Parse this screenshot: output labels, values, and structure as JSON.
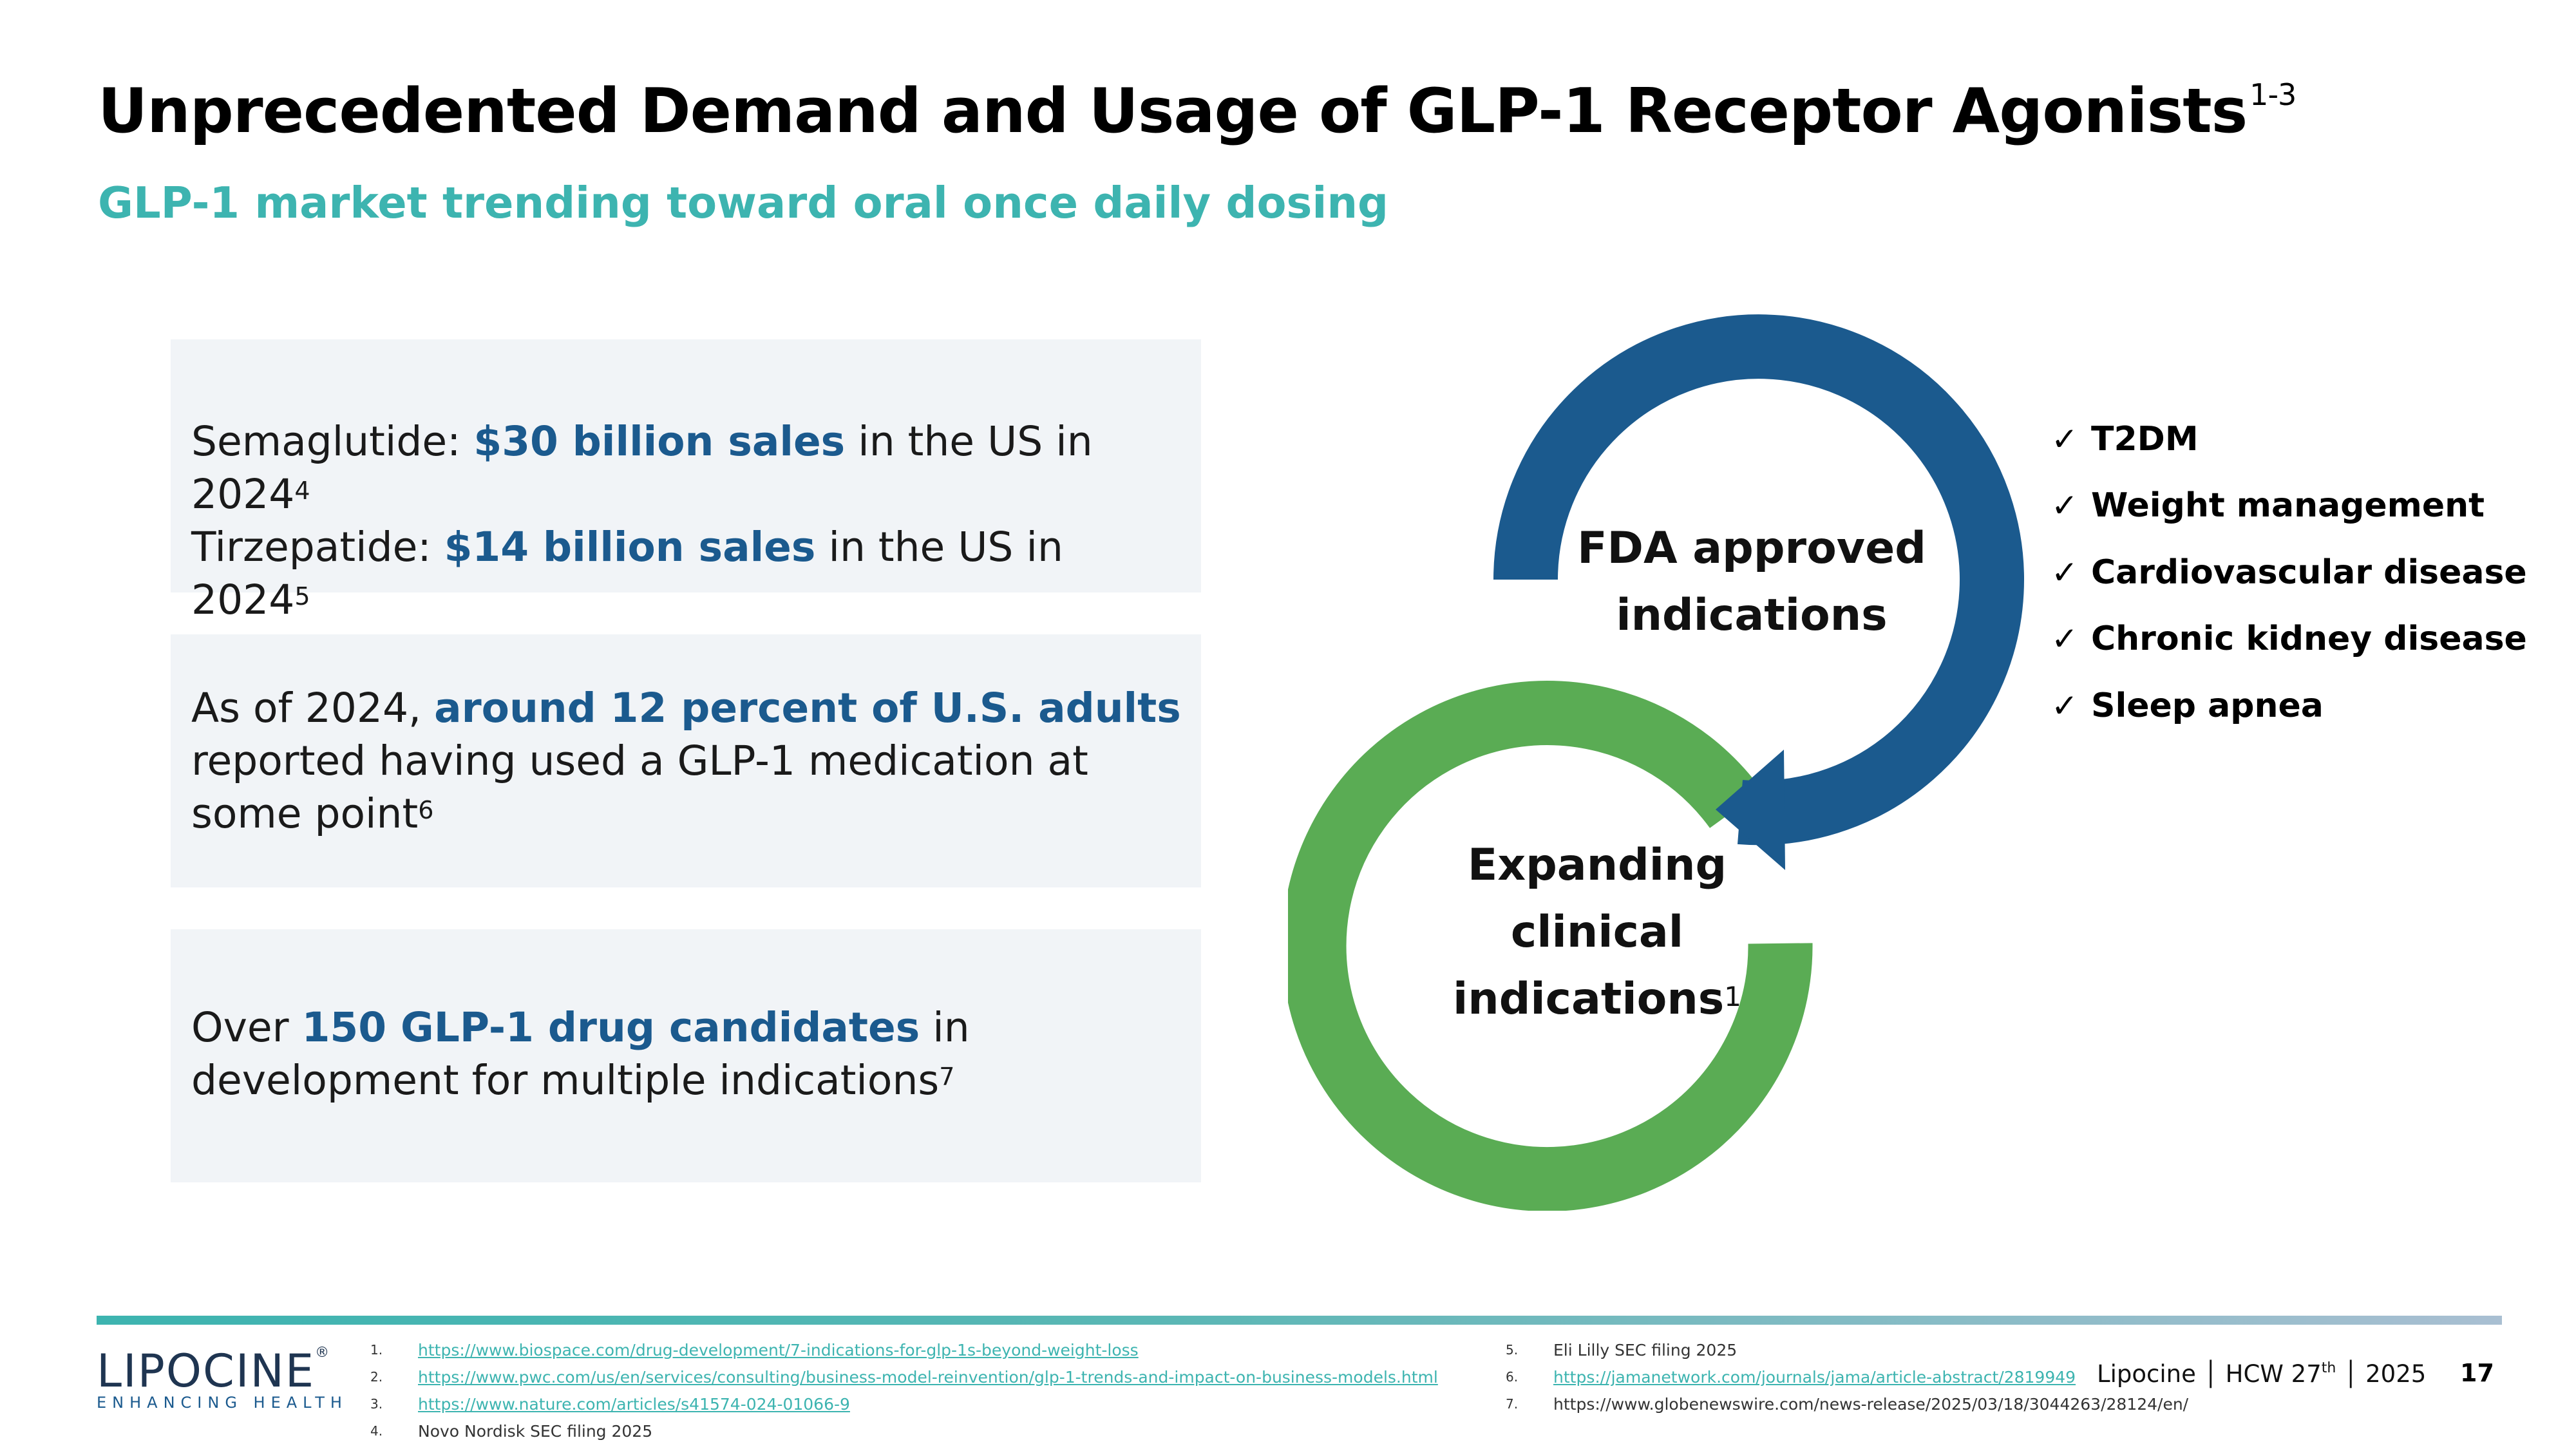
{
  "title": {
    "text": "Unprecedented Demand and Usage of GLP-1 Receptor Agonists",
    "sup": "1-3"
  },
  "subtitle": "GLP-1 market trending toward oral once daily dosing",
  "cards": [
    {
      "line1_a": "Semaglutide: ",
      "line1_b": "$30 billion sales",
      "line1_c": " in the US in 2024",
      "line1_sup": "4",
      "line2_a": "Tirzepatide: ",
      "line2_b": "$14 billion sales",
      "line2_c": " in the US in 2024",
      "line2_sup": "5"
    },
    {
      "a": "As of 2024, ",
      "b": "around 12 percent of U.S. adults",
      "c": " reported having used a GLP-1 medication at some point",
      "sup": "6"
    },
    {
      "a": "Over ",
      "b": "150 GLP-1 drug candidates",
      "c": " in development for multiple indications",
      "sup": "7"
    }
  ],
  "diagram": {
    "fda_line1": "FDA approved",
    "fda_line2": "indications",
    "exp_line1": "Expanding",
    "exp_line2": "clinical",
    "exp_line3": "indications",
    "exp_sup": "1",
    "colors": {
      "blue": "#1b5a8e",
      "green": "#5aac54"
    }
  },
  "checklist": {
    "mark": "✓",
    "items": [
      "T2DM",
      "Weight management",
      "Cardiovascular disease",
      "Chronic kidney disease",
      "Sleep apnea"
    ]
  },
  "footer": {
    "logo": "LIPOCINE",
    "logo_mark": "®",
    "tagline": "ENHANCING HEALTH",
    "refs_left": [
      {
        "num": "1.",
        "text": "https://www.biospace.com/drug-development/7-indications-for-glp-1s-beyond-weight-loss",
        "link": true
      },
      {
        "num": "2.",
        "text": "https://www.pwc.com/us/en/services/consulting/business-model-reinvention/glp-1-trends-and-impact-on-business-models.html",
        "link": true
      },
      {
        "num": "3.",
        "text": "https://www.nature.com/articles/s41574-024-01066-9",
        "link": true
      },
      {
        "num": "4.",
        "text": "Novo Nordisk SEC filing 2025",
        "link": false
      }
    ],
    "refs_right": [
      {
        "num": "5.",
        "text": "Eli Lilly SEC filing 2025",
        "link": false
      },
      {
        "num": "6.",
        "text": "https://jamanetwork.com/journals/jama/article-abstract/2819949",
        "link": true
      },
      {
        "num": "7.",
        "text": "https://www.globenewswire.com/news-release/2025/03/18/3044263/28124/en/",
        "link": false
      }
    ],
    "conf_a": "Lipocine  │ HCW 27",
    "conf_sup": "th",
    "conf_b": " │  2025",
    "page": "17"
  }
}
